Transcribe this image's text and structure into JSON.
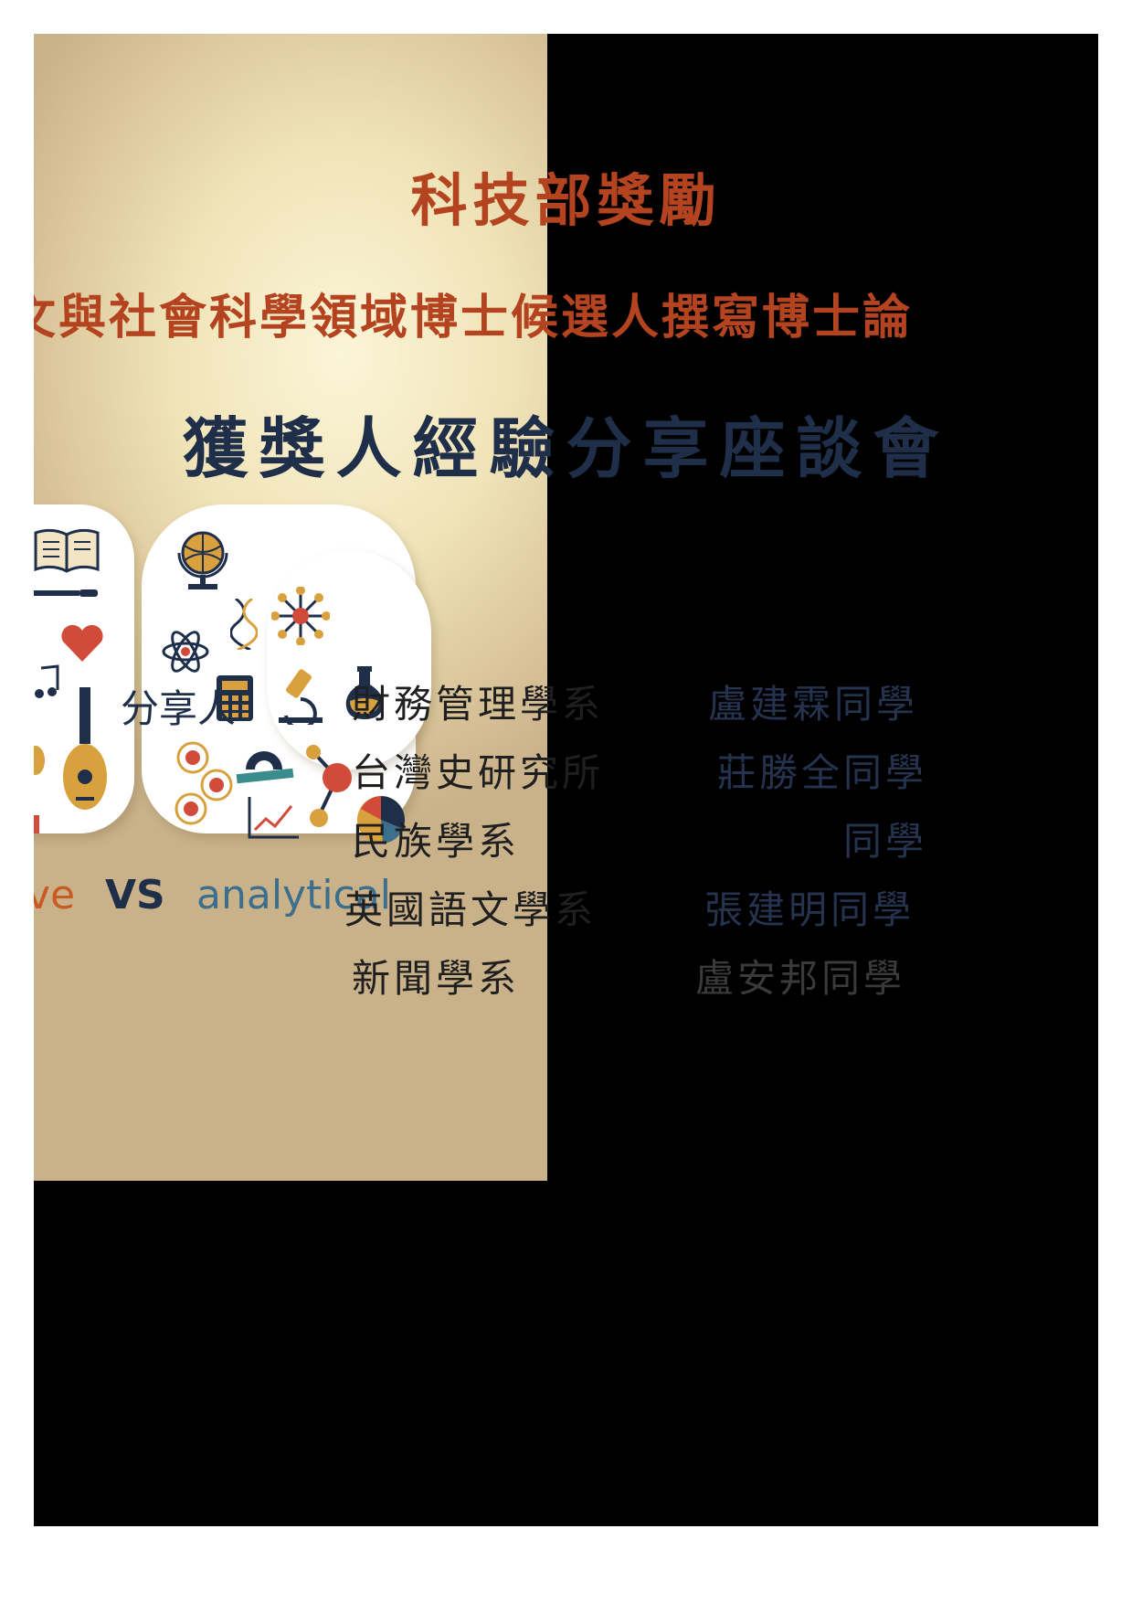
{
  "title_line1": "科技部獎勵",
  "title_line2": "文與社會科學領域博士候選人撰寫博士論",
  "title_line3": "獲獎人經驗分享座談會",
  "graphic": {
    "vs_left_fragment": "ve",
    "vs_word": "VS",
    "vs_right": "analytical"
  },
  "share_label": "分享人",
  "speakers": [
    {
      "dept": "財務管理學系",
      "name": "盧建霖同學"
    },
    {
      "dept": "台灣史研究所",
      "name": "莊勝全同學"
    },
    {
      "dept": "民族學系",
      "name": "同學"
    },
    {
      "dept": "英國語文學系",
      "name": "張建明同學"
    },
    {
      "dept": "新聞學系",
      "name": "盧安邦同學"
    }
  ],
  "colors": {
    "title_red": "#b4431f",
    "title_navy": "#1f2f4a",
    "accent_orange": "#c85a22",
    "accent_teal": "#3b6f8c",
    "background": "#000000"
  }
}
